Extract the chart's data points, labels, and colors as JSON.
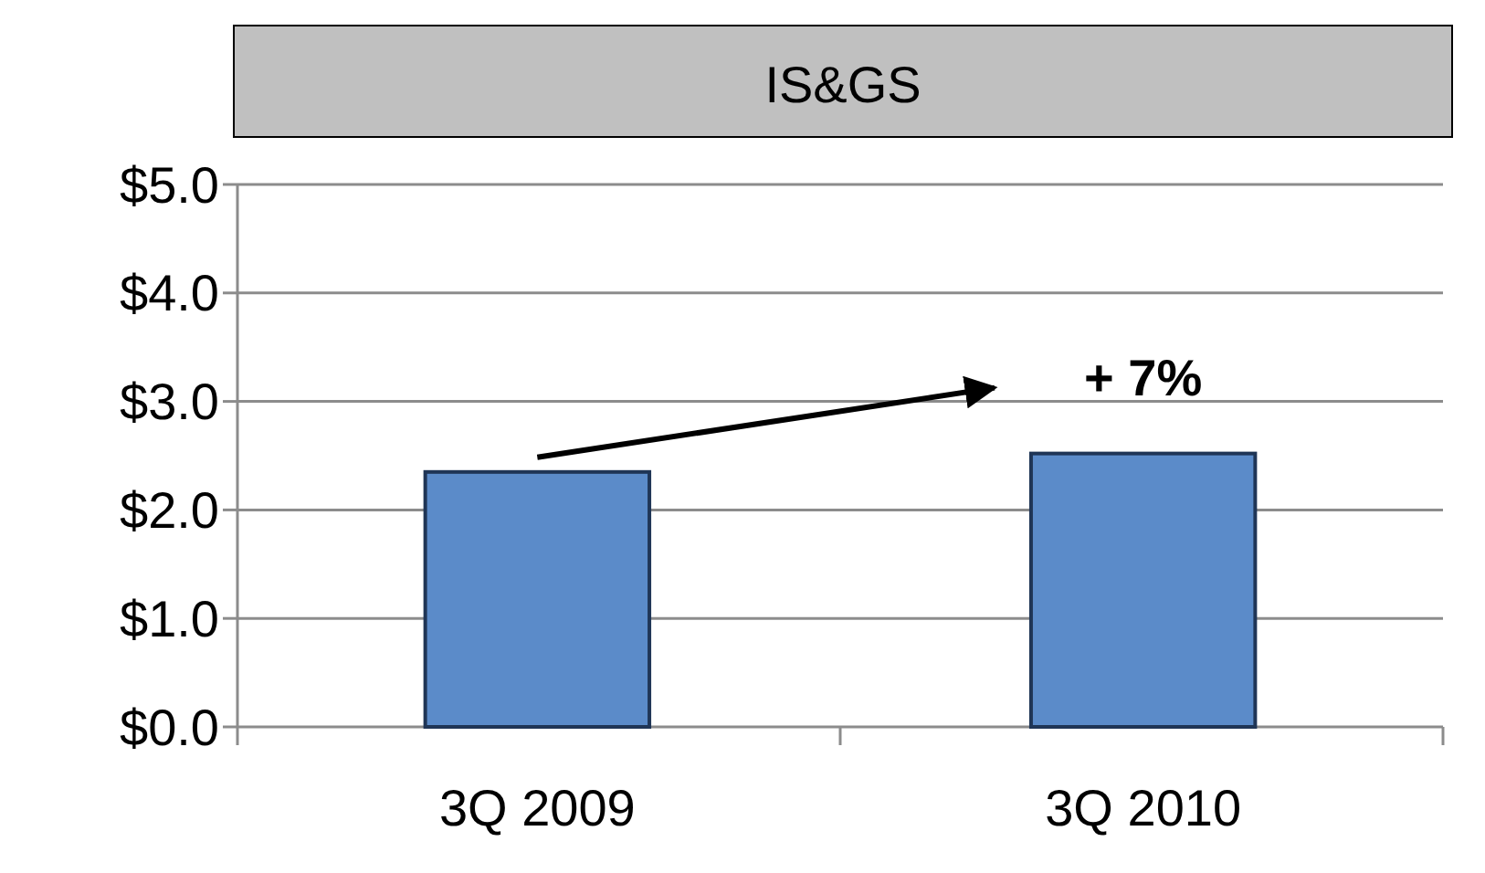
{
  "chart_data": {
    "type": "bar",
    "title": "IS&GS",
    "categories": [
      "3Q 2009",
      "3Q 2010"
    ],
    "values": [
      2.35,
      2.52
    ],
    "color": "#5b8bc9",
    "ylim": [
      0,
      5
    ],
    "yticks": [
      {
        "value": 0,
        "label": "$0.0"
      },
      {
        "value": 1,
        "label": "$1.0"
      },
      {
        "value": 2,
        "label": "$2.0"
      },
      {
        "value": 3,
        "label": "$3.0"
      },
      {
        "value": 4,
        "label": "$4.0"
      },
      {
        "value": 5,
        "label": "$5.0"
      }
    ],
    "grid": "y",
    "annotations": [
      "+ 7%"
    ]
  }
}
